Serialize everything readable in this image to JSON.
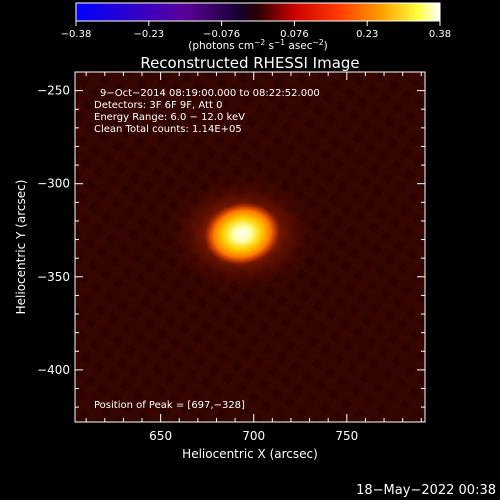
{
  "colorbar": {
    "ticks": [
      "−0.38",
      "−0.23",
      "−0.076",
      "0.076",
      "0.23",
      "0.38"
    ],
    "unit_main": "(photons cm",
    "unit_exp1": "−2",
    "unit_mid": " s",
    "unit_exp2": "−1",
    "unit_end": " asec",
    "unit_exp3": "−2",
    "unit_close": ")"
  },
  "title": "Reconstructed RHESSI Image",
  "info": {
    "line1": "9−Oct−2014 08:19:00.000 to 08:22:52.000",
    "line2": "Detectors: 3F 6F 9F, Att 0",
    "line3": "Energy Range: 6.0 − 12.0 keV",
    "line4": "Clean     Total counts: 1.14E+05"
  },
  "peak_label": "Position of Peak = [697,−328]",
  "timestamp": "18−May−2022 00:38",
  "chart_data": {
    "type": "heatmap",
    "title": "Reconstructed RHESSI Image",
    "xlabel": "Heliocentric X (arcsec)",
    "ylabel": "Heliocentric Y (arcsec)",
    "xlim": [
      604,
      792
    ],
    "ylim": [
      -428,
      -240
    ],
    "xticks": [
      650,
      700,
      750
    ],
    "xtick_labels": [
      "650",
      "700",
      "750"
    ],
    "yticks": [
      -250,
      -300,
      -350,
      -400
    ],
    "ytick_labels": [
      "−250",
      "−300",
      "−350",
      "−400"
    ],
    "colorbar_range": [
      -0.38,
      0.38
    ],
    "peak": {
      "x": 697,
      "y": -328
    },
    "source_sigma_x": 7,
    "source_sigma_y": 5,
    "colormap": [
      "#0000ff",
      "#4b0082",
      "#000000",
      "#8b0000",
      "#ff0000",
      "#ff8c00",
      "#ffff00",
      "#ffffff"
    ]
  }
}
